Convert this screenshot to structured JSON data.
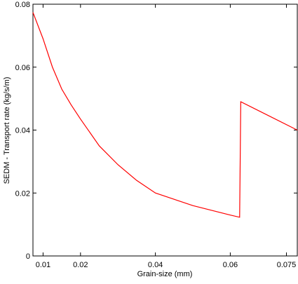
{
  "chart_data": {
    "type": "line",
    "x_label": "Grain-size (mm)",
    "y_label": "SEDM - Transport rate (kg/s/m)",
    "x": [
      0.0073,
      0.01,
      0.0125,
      0.015,
      0.0175,
      0.02,
      0.025,
      0.03,
      0.035,
      0.04,
      0.045,
      0.05,
      0.055,
      0.06,
      0.0625,
      0.0628,
      0.0779
    ],
    "series": [
      {
        "color": "#ff0000",
        "values": [
          0.0774,
          0.069,
          0.06,
          0.053,
          0.048,
          0.0435,
          0.035,
          0.029,
          0.024,
          0.02,
          0.018,
          0.016,
          0.0145,
          0.013,
          0.0123,
          0.049,
          0.04
        ]
      }
    ],
    "xlim": [
      0.0073,
      0.0779
    ],
    "xticks": [
      0.01,
      0.02,
      0.04,
      0.06,
      0.075
    ],
    "ylim": [
      0,
      0.08
    ],
    "yticks": [
      0,
      0.02,
      0.04,
      0.06,
      0.08
    ]
  }
}
